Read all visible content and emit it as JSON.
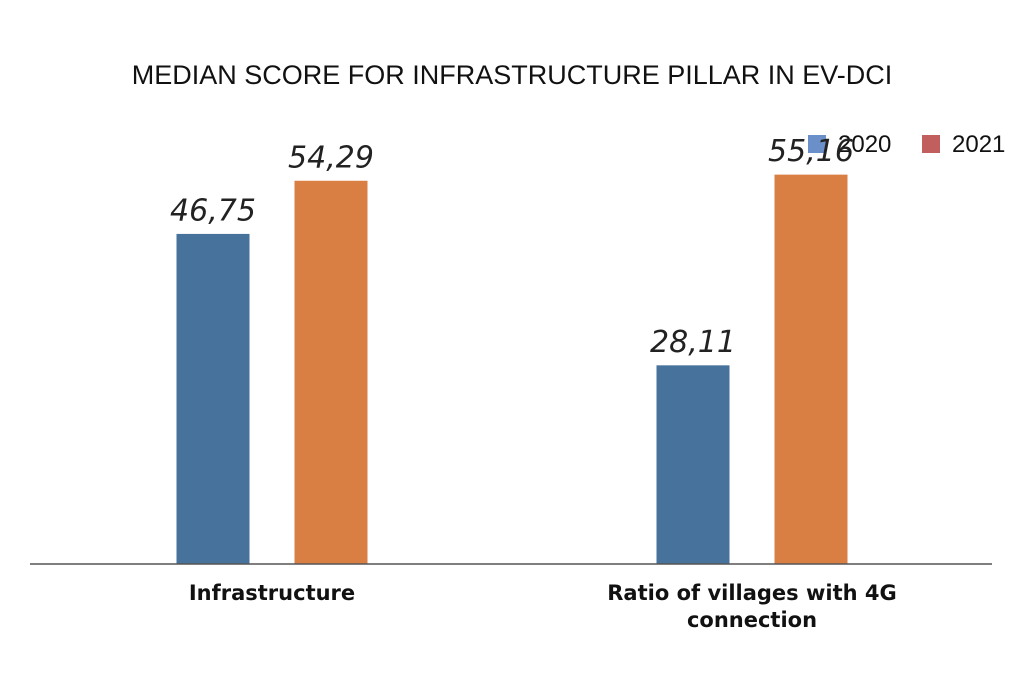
{
  "chart_data": {
    "type": "bar",
    "title": "MEDIAN SCORE FOR INFRASTRUCTURE PILLAR IN EV-DCI",
    "categories": [
      [
        "Infrastructure"
      ],
      [
        "Ratio of villages with 4G",
        "connection"
      ]
    ],
    "series": [
      {
        "name": "2020",
        "color": "#46729c",
        "values": [
          46.75,
          28.11
        ],
        "labels": [
          "46,75",
          "28,11"
        ]
      },
      {
        "name": "2021",
        "color": "#d97f44",
        "values": [
          54.29,
          55.16
        ],
        "labels": [
          "54,29",
          "55,16"
        ]
      }
    ],
    "ylim": [
      0,
      80
    ],
    "grid": false,
    "legend_position": "top-right",
    "legend_colors": [
      "#6a8fc9",
      "#c05f5d"
    ]
  }
}
